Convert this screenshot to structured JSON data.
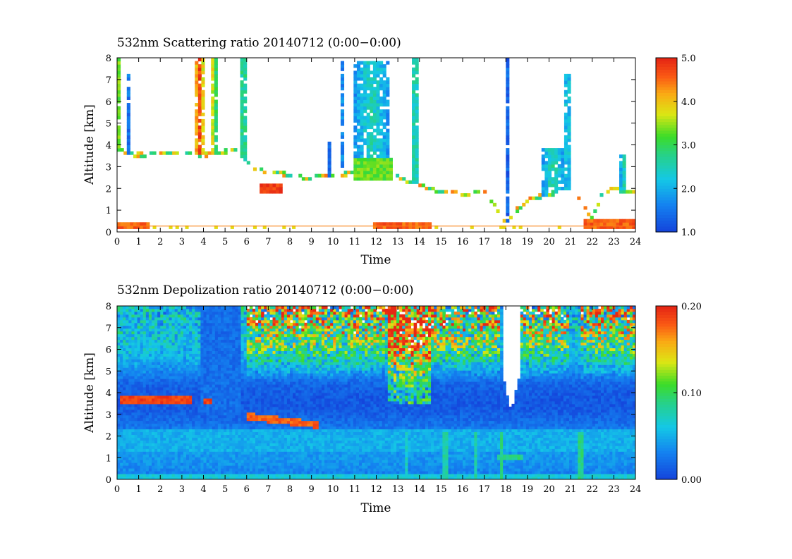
{
  "chart_data": [
    {
      "type": "heatmap",
      "title": "532nm Scattering ratio  20140712 (0:00−0:00)",
      "xlabel": "Time",
      "ylabel": "Altitude [km]",
      "xlim": [
        0,
        24
      ],
      "ylim": [
        0,
        8
      ],
      "x_ticks": [
        "0",
        "1",
        "2",
        "3",
        "4",
        "5",
        "6",
        "7",
        "8",
        "9",
        "10",
        "11",
        "12",
        "13",
        "14",
        "15",
        "16",
        "17",
        "18",
        "19",
        "20",
        "21",
        "22",
        "23",
        "24"
      ],
      "y_ticks": [
        "0",
        "1",
        "2",
        "3",
        "4",
        "5",
        "6",
        "7",
        "8"
      ],
      "colorbar": {
        "range": [
          1.0,
          5.0
        ],
        "ticks": [
          "1.0",
          "2.0",
          "3.0",
          "4.0",
          "5.0"
        ]
      },
      "features": {
        "cloud_base_km": [
          [
            0,
            3.8
          ],
          [
            0.5,
            3.6
          ],
          [
            1,
            3.55
          ],
          [
            2,
            3.6
          ],
          [
            3,
            3.65
          ],
          [
            3.5,
            3.6
          ],
          [
            4,
            3.55
          ],
          [
            4.5,
            3.6
          ],
          [
            5,
            3.7
          ],
          [
            5.5,
            3.8
          ],
          [
            6,
            3.2
          ],
          [
            6.5,
            2.9
          ],
          [
            7,
            2.75
          ],
          [
            7.5,
            2.7
          ],
          [
            8,
            2.6
          ],
          [
            8.5,
            2.5
          ],
          [
            9,
            2.5
          ],
          [
            9.5,
            2.55
          ],
          [
            10,
            2.6
          ],
          [
            10.5,
            2.65
          ],
          [
            11,
            2.7
          ],
          [
            11.5,
            2.75
          ],
          [
            12,
            2.8
          ],
          [
            12.5,
            2.6
          ],
          [
            13,
            2.5
          ],
          [
            13.5,
            2.3
          ],
          [
            14,
            2.2
          ],
          [
            14.5,
            2.0
          ],
          [
            15,
            1.8
          ],
          [
            15.5,
            1.9
          ],
          [
            16,
            1.7
          ],
          [
            16.5,
            1.8
          ],
          [
            17,
            1.9
          ],
          [
            17.5,
            1.2
          ],
          [
            18,
            0.4
          ],
          [
            18.5,
            1.0
          ],
          [
            19,
            1.5
          ],
          [
            19.5,
            1.6
          ],
          [
            20,
            1.7
          ],
          [
            20.5,
            1.9
          ],
          [
            21,
            2.0
          ],
          [
            21.5,
            1.4
          ],
          [
            22,
            0.6
          ],
          [
            22.5,
            1.8
          ],
          [
            23,
            2.0
          ],
          [
            23.5,
            1.9
          ],
          [
            24,
            1.8
          ]
        ],
        "columns": [
          {
            "t0": 0.0,
            "t1": 0.2,
            "top": 8.0,
            "level": 3.3
          },
          {
            "t0": 0.45,
            "t1": 0.55,
            "top": 7.2,
            "level": 1.6
          },
          {
            "t0": 3.55,
            "t1": 4.05,
            "top": 8.0,
            "level": 4.5
          },
          {
            "t0": 4.3,
            "t1": 4.6,
            "top": 8.0,
            "level": 3.6
          },
          {
            "t0": 5.75,
            "t1": 5.95,
            "top": 8.0,
            "level": 3.2
          },
          {
            "t0": 9.7,
            "t1": 9.85,
            "top": 4.2,
            "level": 1.5
          },
          {
            "t0": 10.35,
            "t1": 10.5,
            "top": 8.0,
            "level": 1.5
          },
          {
            "t0": 11.0,
            "t1": 12.6,
            "top": 7.9,
            "level": 2.3
          },
          {
            "t0": 13.6,
            "t1": 14.0,
            "top": 8.0,
            "level": 2.6
          },
          {
            "t0": 18.05,
            "t1": 18.15,
            "top": 8.0,
            "level": 1.4
          },
          {
            "t0": 19.7,
            "t1": 20.7,
            "top": 3.8,
            "level": 2.4
          },
          {
            "t0": 20.7,
            "t1": 21.0,
            "top": 7.2,
            "level": 2.3
          },
          {
            "t0": 23.3,
            "t1": 23.6,
            "top": 3.6,
            "level": 2.4
          }
        ],
        "layers": [
          {
            "t0": 6.6,
            "t1": 7.7,
            "bottom": 1.8,
            "top": 2.1,
            "level": 4.8
          },
          {
            "t0": 0.0,
            "t1": 24.0,
            "bottom": 0.25,
            "top": 0.3,
            "level": 4.5
          },
          {
            "t0": 0.0,
            "t1": 1.5,
            "bottom": 0.25,
            "top": 0.4,
            "level": 4.6
          },
          {
            "t0": 11.8,
            "t1": 14.6,
            "bottom": 0.25,
            "top": 0.4,
            "level": 4.6
          },
          {
            "t0": 21.6,
            "t1": 24.0,
            "bottom": 0.25,
            "top": 0.5,
            "level": 4.6
          },
          {
            "t0": 11.0,
            "t1": 12.8,
            "bottom": 2.5,
            "top": 3.3,
            "level": 3.3
          }
        ]
      }
    },
    {
      "type": "heatmap",
      "title": "532nm Depolization ratio  20140712 (0:00−0:00)",
      "xlabel": "Time",
      "ylabel": "Altitude [km]",
      "xlim": [
        0,
        24
      ],
      "ylim": [
        0,
        8
      ],
      "x_ticks": [
        "0",
        "1",
        "2",
        "3",
        "4",
        "5",
        "6",
        "7",
        "8",
        "9",
        "10",
        "11",
        "12",
        "13",
        "14",
        "15",
        "16",
        "17",
        "18",
        "19",
        "20",
        "21",
        "22",
        "23",
        "24"
      ],
      "y_ticks": [
        "0",
        "1",
        "2",
        "3",
        "4",
        "5",
        "6",
        "7",
        "8"
      ],
      "colorbar": {
        "range": [
          0.0,
          0.2
        ],
        "ticks": [
          "0.00",
          "0.10",
          "0.20"
        ]
      },
      "features": {
        "high_depol_layers": [
          {
            "t0": 0.2,
            "t1": 3.5,
            "alt": 3.7,
            "level": 0.19
          },
          {
            "t0": 6.0,
            "t1": 9.3,
            "alt": 2.8,
            "level": 0.18
          },
          {
            "t0": 4.0,
            "t1": 4.4,
            "alt": 3.6,
            "level": 0.19
          },
          {
            "t0": 17.6,
            "t1": 18.8,
            "alt": 1.0,
            "level": 0.09
          }
        ],
        "gap": {
          "t0": 17.9,
          "t1": 18.6,
          "bottom": 3.2,
          "top": 8.0
        },
        "vertical_streaks": [
          {
            "t": 13.4,
            "level": 0.07
          },
          {
            "t": 15.2,
            "level": 0.08
          },
          {
            "t": 16.6,
            "level": 0.08
          },
          {
            "t": 21.5,
            "level": 0.09
          },
          {
            "t": 17.8,
            "level": 0.09
          }
        ]
      }
    }
  ]
}
